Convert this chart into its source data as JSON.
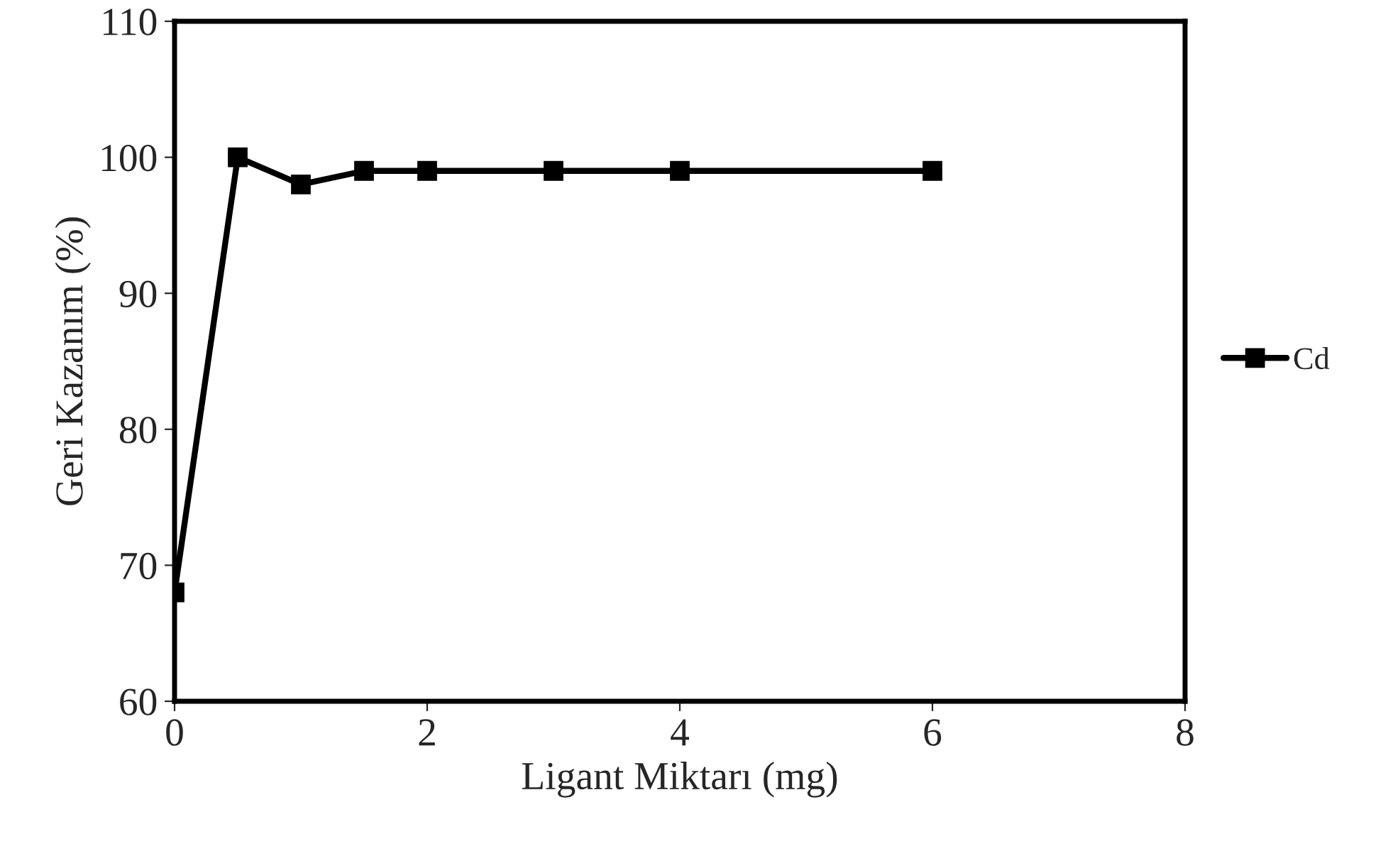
{
  "chart_data": {
    "type": "line",
    "xlabel": "Ligant Miktarı (mg)",
    "ylabel": "Geri Kazanım (%)",
    "x": [
      0,
      0.5,
      1,
      1.5,
      2,
      3,
      4,
      6
    ],
    "series": [
      {
        "name": "Cd",
        "color": "#000000",
        "values": [
          68,
          100,
          98,
          99,
          99,
          99,
          99,
          99
        ]
      }
    ],
    "xlim": [
      0,
      8
    ],
    "xticks": [
      0,
      2,
      4,
      6,
      8
    ],
    "ylim": [
      60,
      110
    ],
    "yticks": [
      60,
      70,
      80,
      90,
      100,
      110
    ],
    "grid": false,
    "legend": "right",
    "marker": "square",
    "line_style": "solid"
  }
}
